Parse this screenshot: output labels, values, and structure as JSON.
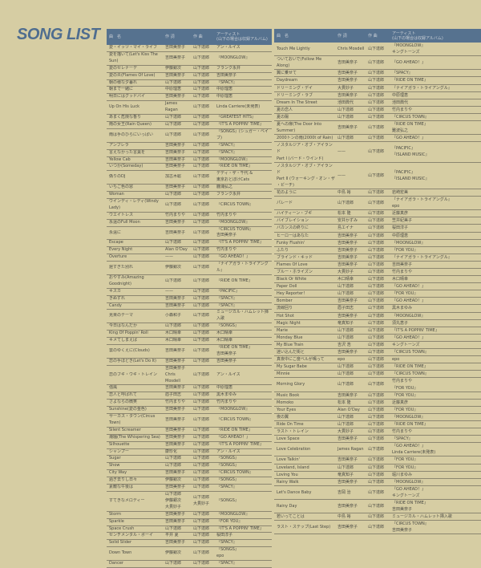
{
  "page_title": "SONG LIST",
  "colors": {
    "header_bg": "#56728f",
    "title": "#4f6d8f",
    "paper": "#d6cda3"
  },
  "headers": [
    "曲　名",
    "作 詞",
    "作 曲",
    "アーティスト\n(山下の場合は収録アルバム)"
  ],
  "left_rows": [
    [
      "愛・イッツ・マイ・ライフ",
      "吉田美奈子",
      "山下達郎",
      "アン・ルイス"
    ],
    [
      "愛を描いて(Let's Kiss The Sun)",
      "吉田美奈子",
      "山下達郎",
      "『MOONGLOW』"
    ],
    [
      "愛のセレナーデ",
      "伊藤銀次",
      "山下達郎",
      "フランク永井"
    ],
    [
      "愛の炎(Flames Of Love)",
      "吉田美奈子",
      "山下達郎",
      "吉田美奈子"
    ],
    [
      "朝の様な夕暮れ",
      "山下達郎",
      "山下達郎",
      "『SPACY』"
    ],
    [
      "朝まで一緒に",
      "中原理恵",
      "山下達郎",
      "中原理恵"
    ],
    [
      "明日にはグッドバイ",
      "吉田美奈子",
      "山下達郎",
      "中原理恵"
    ],
    [
      "Up On His Luck",
      "James Ragan",
      "山下達郎",
      "Linda Carriere(未発表)"
    ],
    [
      "あまく危険な香り",
      "山下達郎",
      "山下達郎",
      "『GREATEST HITS』"
    ],
    [
      "雨の女王(Rain Queen)",
      "山下達郎",
      "山下達郎",
      "『IT'S A POPPIN' TIME』"
    ],
    [
      "雨は手のひらにいっぱい",
      "山下達郎",
      "山下達郎",
      "『SONGS』(シュガー・ベイブ)"
    ],
    [
      "アンブレラ",
      "吉田美奈子",
      "山下達郎",
      "『SPACY』"
    ],
    [
      "言えなかった言葉を",
      "吉田美奈子",
      "山下達郎",
      "『SPACY』"
    ],
    [
      "Yellow Cab",
      "吉田美奈子",
      "山下達郎",
      "『MOONGLOW』"
    ],
    [
      "いつか(Someday)",
      "吉田美奈子",
      "山下達郎",
      "『RIDE ON TIME』"
    ],
    [
      "偽りのDJ",
      "加古木聡",
      "山下達郎",
      "デディ・ザ・千代 &\n東京おとぼけCats"
    ],
    [
      "いちご色の窓",
      "吉田美奈子",
      "山下達郎",
      "鹿浦弘之"
    ],
    [
      "Woman",
      "山下達郎",
      "山下達郎",
      "フランク永井"
    ],
    [
      "ウインディ・レディ(Windy Lady)",
      "山下達郎",
      "山下達郎",
      "『CIRCUS TOWN』"
    ],
    [
      "ウエイトレス",
      "竹内まりや",
      "山下達郎",
      "竹内まりや"
    ],
    [
      "永遠のFull Moon",
      "吉田美奈子",
      "山下達郎",
      "『MOONGLOW』"
    ],
    [
      "永遠に",
      "吉田美奈子",
      "山下達郎",
      "『CIRCUS TOWN』\n吉田美奈子"
    ],
    [
      "Escape",
      "山下達郎",
      "山下達郎",
      "『IT'S A POPPIN' TIME』"
    ],
    [
      "Every Night",
      "Alan O'Day",
      "山下達郎",
      "竹内まりや"
    ],
    [
      "Overture",
      "——",
      "山下達郎",
      "『GO AHEAD！』"
    ],
    [
      "遅すぎた別れ",
      "伊藤銀次",
      "山下達郎",
      "『ナイアガラ・トライアングル』"
    ],
    [
      "おやすみ(Amazing Goodnight)",
      "山下達郎",
      "山下達郎",
      "『RIDE ON TIME』"
    ],
    [
      "キスカ",
      "——",
      "山下達郎",
      "『PACIFIC』"
    ],
    [
      "きぬずれ",
      "吉田美奈子",
      "山下達郎",
      "『SPACY』"
    ],
    [
      "Candy",
      "吉田美奈子",
      "山下達郎",
      "『SPACY』"
    ],
    [
      "見果のテーマ",
      "小森和子",
      "山下達郎",
      "ミュージカル・ハムレット挿入歌"
    ],
    [
      "今日はなんだか",
      "山下達郎",
      "山下達郎",
      "『SONGS』"
    ],
    [
      "King Of Poppin' Roll",
      "木口晴幸",
      "山下達郎",
      "木口晴幸"
    ],
    [
      "キメてしまえば",
      "木口晴幸",
      "山下達郎",
      "木口晴幸"
    ],
    [
      "雲のゆくえに(Clouds)",
      "吉田美奈子",
      "山下達郎",
      "『RIDE ON TIME』\n吉田美奈子"
    ],
    [
      "恋の手ほどき(Let's Do It)",
      "吉田美奈子",
      "山下達郎",
      "吉田美奈子"
    ],
    [
      "恋のブギ・ウギ・トレイン",
      "吉田美奈子\nChris Mosdell",
      "山下達郎",
      "アン・ルイス"
    ],
    [
      "強風",
      "吉田美奈子",
      "山下達郎",
      "中原理恵"
    ],
    [
      "恋人と呼ばれて",
      "眉子田志",
      "山下達郎",
      "黒木まゆみ"
    ],
    [
      "さよならの微笑",
      "竹内まりや",
      "山下達郎",
      "竹内まりや"
    ],
    [
      "Sunshine(愛の金色)",
      "吉田美奈子",
      "山下達郎",
      "『MOONGLOW』"
    ],
    [
      "サーカス・タウン(Circus Town)",
      "吉田美奈子",
      "山下達郎",
      "『CIRCUS TOWN』"
    ],
    [
      "Silent Screamer",
      "吉田美奈子",
      "山下達郎",
      "『RIDE ON TIME』"
    ],
    [
      "潮騒(The Whispering Sea)",
      "吉田美奈子",
      "山下達郎",
      "『GO AHEAD！』"
    ],
    [
      "Silhouette",
      "吉田美奈子",
      "山下達郎",
      "『IT'S A POPPIN' TIME』"
    ],
    [
      "シャンプー",
      "康珍化",
      "山下達郎",
      "アン・ルイス"
    ],
    [
      "Sugar",
      "山下達郎",
      "山下達郎",
      "『SONGS』"
    ],
    [
      "Show",
      "山下達郎",
      "山下達郎",
      "『SONGS』"
    ],
    [
      "City Way",
      "吉田美奈子",
      "山下達郎",
      "『CIRCUS TOWN』"
    ],
    [
      "過ぎ去りし日々",
      "伊藤銀次",
      "山下達郎",
      "『SONGS』"
    ],
    [
      "素敵な午後は",
      "吉田美奈子",
      "山下達郎",
      "『SPACY』"
    ],
    [
      "すてきなメロディー",
      "山下達郎\n伊藤銀次\n大貫妙子",
      "山下達郎\n大貫妙子",
      "『SONGS』"
    ],
    [
      "Storm",
      "吉田美奈子",
      "山下達郎",
      "『MOONGLOW』"
    ],
    [
      "Sparkle",
      "吉田美奈子",
      "山下達郎",
      "『FOR YOU』"
    ],
    [
      "Space Crush",
      "山下達郎",
      "山下達郎",
      "『IT'S A POPPIN' TIME』"
    ],
    [
      "センチメンタル・ボーイ",
      "平井 夏",
      "山下達郎",
      "桜田淳子"
    ],
    [
      "Solid Slider",
      "吉田美奈子",
      "山下達郎",
      "『SPACY』"
    ],
    [
      "Down Town",
      "伊藤銀次",
      "山下達郎",
      "『SONGS』\nepo"
    ],
    [
      "Dancer",
      "山下達郎",
      "山下達郎",
      "『SPACY』"
    ]
  ],
  "right_rows": [
    [
      "Touch Me Lightly",
      "Chris Mosdell",
      "山下達郎",
      "『MOONGLOW』\nキングトーンズ"
    ],
    [
      "ついておいで(Follow Me Along)",
      "吉田美奈子",
      "山下達郎",
      "『GO AHEAD！』"
    ],
    [
      "翼に乗せて",
      "吉田美奈子",
      "山下達郎",
      "『SPACY』"
    ],
    [
      "Daydream",
      "吉田美奈子",
      "山下達郎",
      "『RIDE ON TIME』"
    ],
    [
      "ドリーミング・デイ",
      "大貫妙子",
      "山下達郎",
      "『ナイアガラ・トライアングル』"
    ],
    [
      "ドリーミング・ラブ",
      "吉田美奈子",
      "山下達郎",
      "中原理恵"
    ],
    [
      "Dream In The Street",
      "池田典代",
      "山下達郎",
      "池田典代"
    ],
    [
      "夏の恋人",
      "山下達郎",
      "山下達郎",
      "竹内まりや"
    ],
    [
      "夏の陽",
      "山下達郎",
      "山下達郎",
      "『CIRCUS TOWN』"
    ],
    [
      "夏への扉(The Door Into Summer)",
      "吉田美奈子",
      "山下達郎",
      "『RIDE ON TIME』\n難波弘之"
    ],
    [
      "2000トンの雨(2000t of Rain)",
      "山下達郎",
      "山下達郎",
      "『GO AHEAD！』"
    ],
    [
      "ノスタルジア・オブ・アイランド\nPart I (バード・ウインド)",
      "——",
      "山下達郎",
      "『PACIFIC』\n『ISLAND MUSIC』"
    ],
    [
      "ノスタルジア・オブ・アイランド\nPart II (ウォーキング・オン・ザ\n・ビーチ)",
      "——",
      "山下達郎",
      "『PACIFIC』\n『ISLAND MUSIC』"
    ],
    [
      "花のように",
      "中島 裕",
      "山下達郎",
      "岩崎宏美"
    ],
    [
      "パレード",
      "山下達郎",
      "山下達郎",
      "『ナイアガラ・トライアングル』\nepo"
    ],
    [
      "ハイティーン・ブギ",
      "松本 隆",
      "山下達郎",
      "近藤真彦"
    ],
    [
      "バイブレイション",
      "安井かずみ",
      "山下達郎",
      "笠井紀美子"
    ],
    [
      "バカンスの終りに",
      "島エイナ",
      "山下達郎",
      "桜田淳子"
    ],
    [
      "ヒーローはあなた",
      "吉田美奈子",
      "山下達郎",
      "中原理恵"
    ],
    [
      "Funky Flushin'",
      "吉田美奈子",
      "山下達郎",
      "『MOONGLOW』"
    ],
    [
      "ふたり",
      "吉田美奈子",
      "山下達郎",
      "『FOR YOU』"
    ],
    [
      "ブラインド・キッド",
      "吉田美奈子",
      "山下達郎",
      "『ナイアガラ・トライアングル』"
    ],
    [
      "Flames Of Love",
      "吉田美奈子",
      "山下達郎",
      "吉田美奈子"
    ],
    [
      "ブルー・ホライズン",
      "大貫妙子",
      "山下達郎",
      "竹内まりや"
    ],
    [
      "Black Or White",
      "木口晴幸",
      "山下達郎",
      "木口晴幸"
    ],
    [
      "Paper Doll",
      "山下達郎",
      "山下達郎",
      "『GO AHEAD！』"
    ],
    [
      "Hey Reporter！",
      "山下達郎",
      "山下達郎",
      "『FOR YOU』"
    ],
    [
      "Bomber",
      "吉田美奈子",
      "山下達郎",
      "『GO AHEAD！』"
    ],
    [
      "流線回り",
      "眉子田志",
      "山下達郎",
      "黒木まゆみ"
    ],
    [
      "Hot Shot",
      "吉田美奈子",
      "山下達郎",
      "『MOONGLOW』"
    ],
    [
      "Magic Night",
      "竜真知子",
      "山下達郎",
      "須丸恵子"
    ],
    [
      "Marie",
      "山下達郎",
      "山下達郎",
      "『IT'S A POPPIN' TIME』"
    ],
    [
      "Monday Blue",
      "山下達郎",
      "山下達郎",
      "『GO AHEAD！』"
    ],
    [
      "My Blue Train",
      "吉沢 浩",
      "山下達郎",
      "キングトーンズ"
    ],
    [
      "迷い込んだ街と",
      "吉田美奈子",
      "山下達郎",
      "『CIRCUS TOWN』"
    ],
    [
      "真夜中にこ度ベルが鳴って",
      "epo",
      "山下達郎",
      "epo"
    ],
    [
      "My Sugar Babe",
      "山下達郎",
      "山下達郎",
      "『RIDE ON TIME』"
    ],
    [
      "Minnie",
      "山下達郎",
      "山下達郎",
      "『CIRCUS TOWN』"
    ],
    [
      "Morning Glory",
      "山下達郎",
      "山下達郎",
      "竹内まりや\n『FOR YOU』"
    ],
    [
      "Music Book",
      "吉田美奈子",
      "山下達郎",
      "『FOR YOU』"
    ],
    [
      "Momoko",
      "松本 隆",
      "山下達郎",
      "近藤真彦"
    ],
    [
      "Your Eyes",
      "Alan O'Day",
      "山下達郎",
      "『FOR YOU』"
    ],
    [
      "夜の翼",
      "山下達郎",
      "山下達郎",
      "『MOONGLOW』"
    ],
    [
      "Ride On Time",
      "山下達郎",
      "山下達郎",
      "『RIDE ON TIME』"
    ],
    [
      "ラスト・トレイン",
      "大貫妙子",
      "山下達郎",
      "竹内まりや"
    ],
    [
      "Love Space",
      "吉田美奈子",
      "山下達郎",
      "『SPACY』"
    ],
    [
      "Love Celebration",
      "James Ragan",
      "山下達郎",
      "『GO AHEAD！』\nLinda Carriere(未発表)"
    ],
    [
      "Love Talkin'",
      "吉田美奈子",
      "山下達郎",
      "『FOR YOU』"
    ],
    [
      "Loveland, Island",
      "山下達郎",
      "山下達郎",
      "『FOR YOU』"
    ],
    [
      "Loving You",
      "竜真知子",
      "山下達郎",
      "堀川まゆみ"
    ],
    [
      "Rainy Walk",
      "吉田美奈子",
      "山下達郎",
      "『MOONGLOW』"
    ],
    [
      "Let's Dance Baby",
      "吉岡 治",
      "山下達郎",
      "『GO AHEAD！』\nキングトーンズ"
    ],
    [
      "Rainy Day",
      "吉田美奈子",
      "山下達郎",
      "『RIDE ON TIME』\n吉田美奈子"
    ],
    [
      "若いってことは",
      "中島 裕",
      "山下達郎",
      "ミュージカル・ハムレット挿入歌"
    ],
    [
      "ラスト・ステップ(Last Step)",
      "吉田美奈子",
      "山下達郎",
      "『CIRCUS TOWN』\n吉田美奈子"
    ]
  ]
}
